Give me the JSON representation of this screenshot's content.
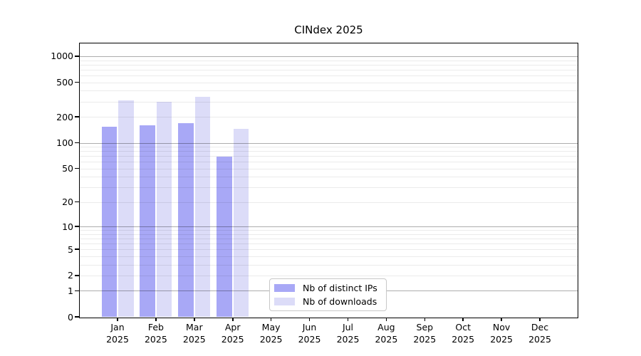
{
  "title": "CINdex 2025",
  "chart_data": {
    "type": "bar",
    "title": "CINdex 2025",
    "categories": [
      "Jan 2025",
      "Feb 2025",
      "Mar 2025",
      "Apr 2025",
      "May 2025",
      "Jun 2025",
      "Jul 2025",
      "Aug 2025",
      "Sep 2025",
      "Oct 2025",
      "Nov 2025",
      "Dec 2025"
    ],
    "x_tick_labels": [
      {
        "m": "Jan",
        "y": "2025"
      },
      {
        "m": "Feb",
        "y": "2025"
      },
      {
        "m": "Mar",
        "y": "2025"
      },
      {
        "m": "Apr",
        "y": "2025"
      },
      {
        "m": "May",
        "y": "2025"
      },
      {
        "m": "Jun",
        "y": "2025"
      },
      {
        "m": "Jul",
        "y": "2025"
      },
      {
        "m": "Aug",
        "y": "2025"
      },
      {
        "m": "Sep",
        "y": "2025"
      },
      {
        "m": "Oct",
        "y": "2025"
      },
      {
        "m": "Nov",
        "y": "2025"
      },
      {
        "m": "Dec",
        "y": "2025"
      }
    ],
    "series": [
      {
        "name": "Nb of distinct IPs",
        "color": "#a8a8f6",
        "values": [
          153,
          160,
          170,
          69,
          0,
          0,
          0,
          0,
          0,
          0,
          0,
          0
        ]
      },
      {
        "name": "Nb of downloads",
        "color": "#dcdcf8",
        "values": [
          310,
          300,
          340,
          144,
          0,
          0,
          0,
          0,
          0,
          0,
          0,
          0
        ]
      }
    ],
    "xlabel": "",
    "ylabel": "",
    "yticks": [
      0,
      1,
      2,
      5,
      10,
      20,
      50,
      100,
      200,
      500,
      1000
    ],
    "ylim": [
      0,
      1400
    ],
    "y_scale": "symlog: position proportional to log10(1+value)",
    "grid": "horizontal; faint minor lines at 2-9 multiples, darker lines at decades 1/10/100/1000, drawn over bars",
    "legend_position": "lower center"
  },
  "legend": {
    "items": [
      "Nb of distinct IPs",
      "Nb of downloads"
    ]
  },
  "colors": {
    "background": "#ffffff",
    "axis": "#000000",
    "bar_ips": "#a8a8f6",
    "bar_downloads": "#dcdcf8",
    "grid_major": "rgba(0,0,0,0.32)",
    "grid_minor": "rgba(0,0,0,0.08)",
    "legend_border": "#c8c8c8"
  }
}
